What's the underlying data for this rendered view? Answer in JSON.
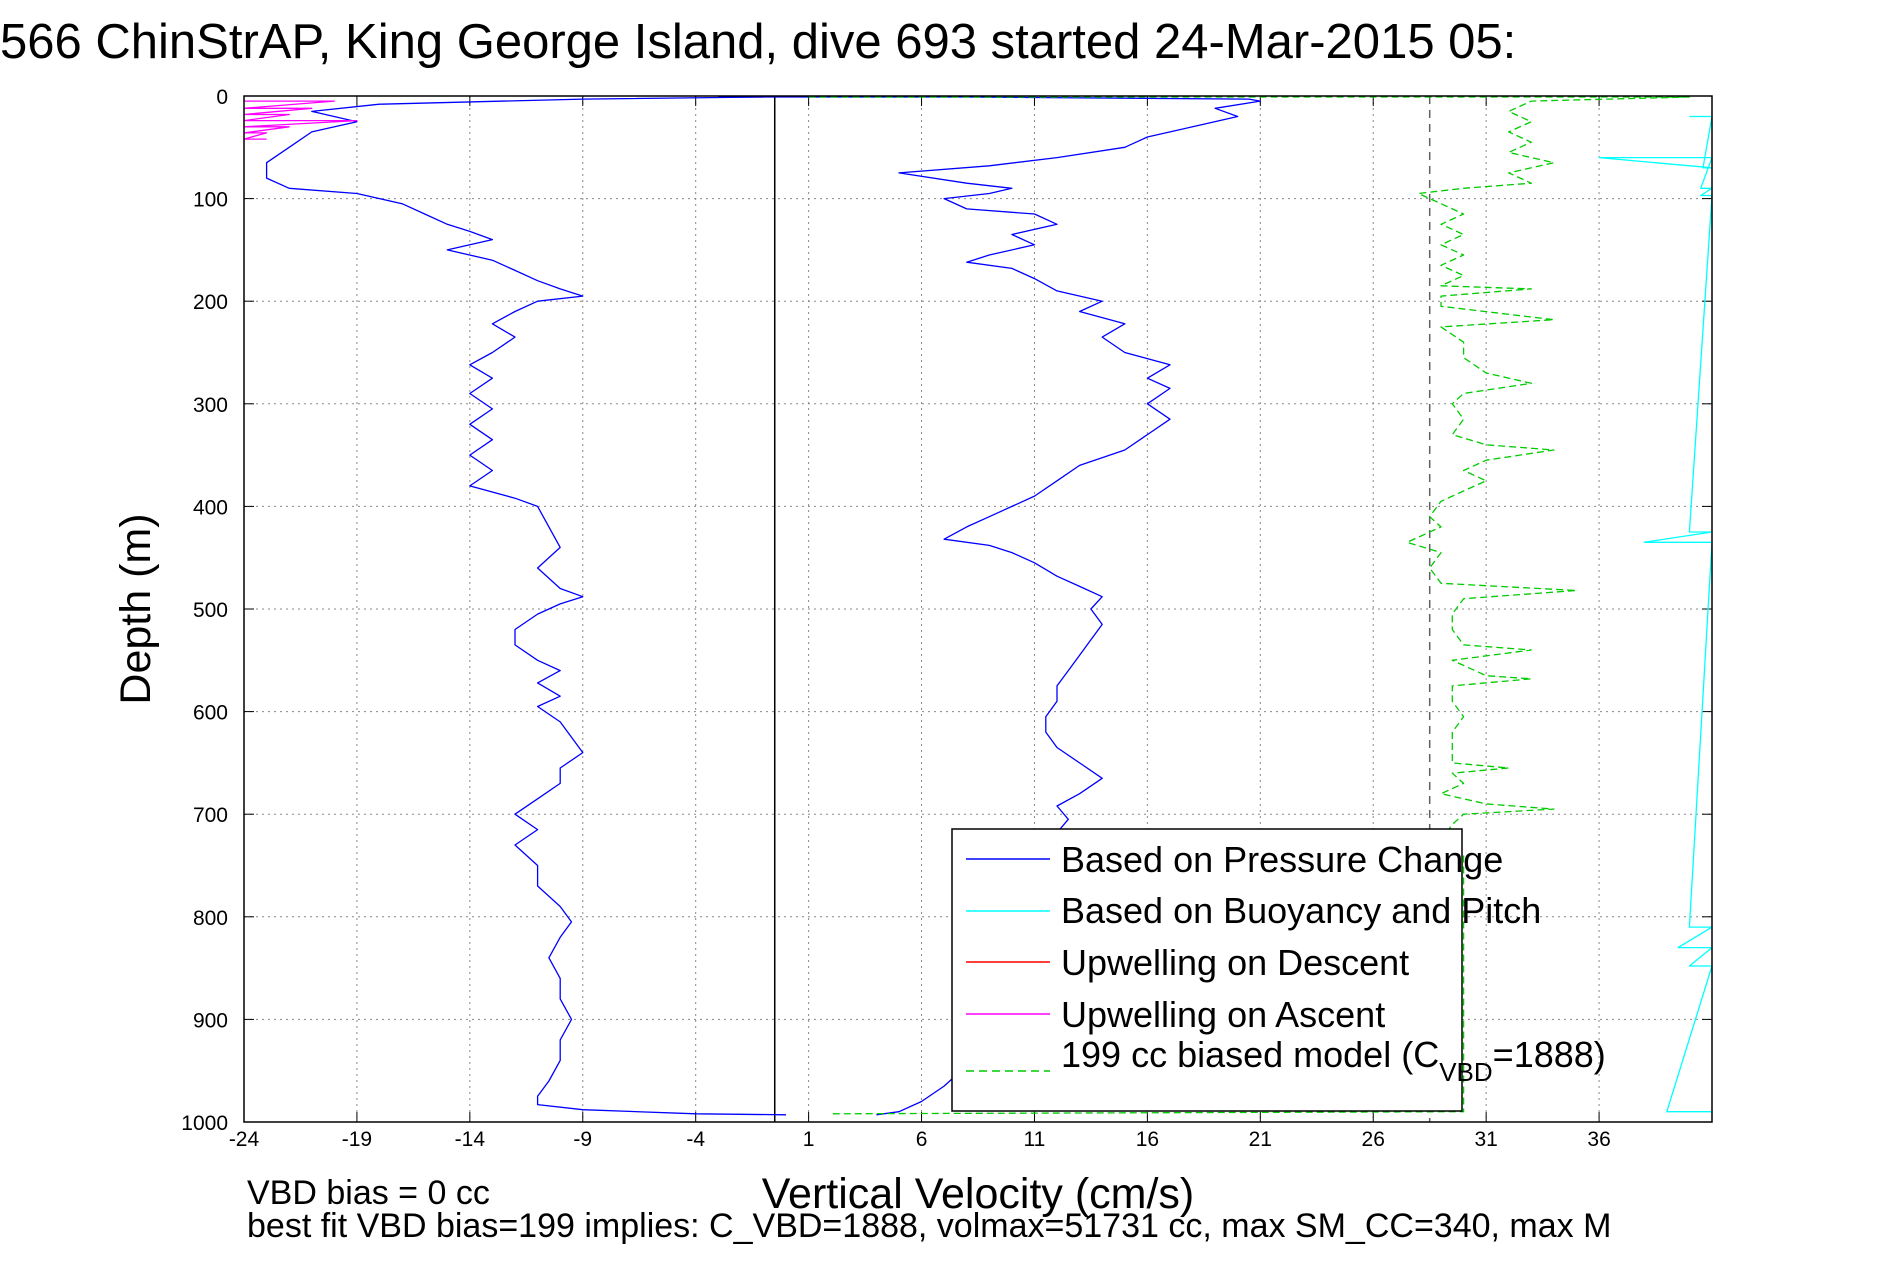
{
  "chart_data": {
    "type": "line",
    "title": "566 ChinStrAP, King George Island, dive 693 started 24-Mar-2015 05:",
    "xlabel": "Vertical Velocity (cm/s)",
    "ylabel": "Depth (m)",
    "xlim": [
      -24,
      41
    ],
    "ylim": [
      0,
      1000
    ],
    "y_reversed": true,
    "grid": true,
    "xticks": [
      "-24",
      "-19",
      "-14",
      "-9",
      "-4",
      "1",
      "6",
      "11",
      "16",
      "21",
      "26",
      "31",
      "36"
    ],
    "xtick_values": [
      -24,
      -19,
      -14,
      -9,
      -4,
      1,
      6,
      11,
      16,
      21,
      26,
      31,
      36
    ],
    "yticks": [
      "0",
      "100",
      "200",
      "300",
      "400",
      "500",
      "600",
      "700",
      "800",
      "900",
      "1000"
    ],
    "ytick_values": [
      0,
      100,
      200,
      300,
      400,
      500,
      600,
      700,
      800,
      900,
      1000
    ],
    "legend_position": "bottom-right",
    "legend": [
      {
        "label": "Based on Pressure Change",
        "color": "#0000ff",
        "style": "solid"
      },
      {
        "label": "Based on Buoyancy and Pitch",
        "color": "#00ffff",
        "style": "solid"
      },
      {
        "label": "Upwelling on Descent",
        "color": "#ff0000",
        "style": "solid"
      },
      {
        "label": "Upwelling on Ascent",
        "color": "#ff00ff",
        "style": "solid"
      },
      {
        "label_prefix": "199 cc biased model (C",
        "label_sub": "VBD",
        "label_suffix": "=1888)",
        "color": "#00cc00",
        "style": "dashed"
      }
    ],
    "reference_lines": [
      {
        "x": -0.5,
        "color": "#000000",
        "style": "solid"
      },
      {
        "x": 28.5,
        "color": "#606060",
        "style": "dashed"
      }
    ],
    "series": [
      {
        "name": "Based on Pressure Change",
        "color": "#0000ff",
        "segment": "descent",
        "points": [
          [
            -1,
            1
          ],
          [
            -9,
            3
          ],
          [
            -18,
            8
          ],
          [
            -21,
            15
          ],
          [
            -19,
            25
          ],
          [
            -21,
            35
          ],
          [
            -22,
            50
          ],
          [
            -23,
            65
          ],
          [
            -23,
            80
          ],
          [
            -22,
            90
          ],
          [
            -19,
            95
          ],
          [
            -17,
            105
          ],
          [
            -16,
            115
          ],
          [
            -15,
            125
          ],
          [
            -14,
            132
          ],
          [
            -13,
            140
          ],
          [
            -15,
            150
          ],
          [
            -13,
            160
          ],
          [
            -12,
            170
          ],
          [
            -11,
            180
          ],
          [
            -10,
            188
          ],
          [
            -9,
            195
          ],
          [
            -11,
            200
          ],
          [
            -12,
            210
          ],
          [
            -13,
            222
          ],
          [
            -12,
            235
          ],
          [
            -13,
            250
          ],
          [
            -14,
            262
          ],
          [
            -13,
            275
          ],
          [
            -14,
            290
          ],
          [
            -13,
            305
          ],
          [
            -14,
            320
          ],
          [
            -13,
            335
          ],
          [
            -14,
            350
          ],
          [
            -13,
            365
          ],
          [
            -14,
            380
          ],
          [
            -12,
            392
          ],
          [
            -11,
            400
          ],
          [
            -10.5,
            420
          ],
          [
            -10,
            440
          ],
          [
            -11,
            460
          ],
          [
            -10,
            480
          ],
          [
            -9,
            488
          ],
          [
            -10,
            495
          ],
          [
            -11,
            505
          ],
          [
            -12,
            520
          ],
          [
            -12,
            535
          ],
          [
            -11,
            550
          ],
          [
            -10,
            560
          ],
          [
            -11,
            572
          ],
          [
            -10,
            585
          ],
          [
            -11,
            595
          ],
          [
            -10,
            610
          ],
          [
            -9.5,
            625
          ],
          [
            -9,
            640
          ],
          [
            -10,
            655
          ],
          [
            -10,
            670
          ],
          [
            -11,
            685
          ],
          [
            -12,
            700
          ],
          [
            -11,
            715
          ],
          [
            -12,
            730
          ],
          [
            -11,
            750
          ],
          [
            -11,
            770
          ],
          [
            -10,
            790
          ],
          [
            -9.5,
            805
          ],
          [
            -10,
            820
          ],
          [
            -10.5,
            840
          ],
          [
            -10,
            860
          ],
          [
            -10,
            880
          ],
          [
            -9.5,
            900
          ],
          [
            -10,
            920
          ],
          [
            -10,
            940
          ],
          [
            -10.5,
            960
          ],
          [
            -11,
            975
          ],
          [
            -11,
            983
          ],
          [
            -9,
            988
          ],
          [
            -4,
            992
          ],
          [
            0,
            993
          ]
        ]
      },
      {
        "name": "Based on Pressure Change",
        "color": "#0000ff",
        "segment": "ascent",
        "points": [
          [
            -3,
            1
          ],
          [
            8,
            1
          ],
          [
            20.5,
            3
          ],
          [
            21,
            5
          ],
          [
            19,
            12
          ],
          [
            20,
            20
          ],
          [
            18,
            30
          ],
          [
            16,
            40
          ],
          [
            15,
            50
          ],
          [
            12,
            60
          ],
          [
            9,
            68
          ],
          [
            5,
            75
          ],
          [
            8,
            85
          ],
          [
            10,
            90
          ],
          [
            9,
            95
          ],
          [
            7,
            100
          ],
          [
            8,
            110
          ],
          [
            11,
            115
          ],
          [
            12,
            125
          ],
          [
            10,
            135
          ],
          [
            11,
            145
          ],
          [
            9,
            155
          ],
          [
            8,
            162
          ],
          [
            10,
            168
          ],
          [
            11,
            178
          ],
          [
            12,
            190
          ],
          [
            14,
            200
          ],
          [
            13,
            210
          ],
          [
            15,
            222
          ],
          [
            14,
            235
          ],
          [
            15,
            250
          ],
          [
            17,
            262
          ],
          [
            16,
            275
          ],
          [
            17,
            285
          ],
          [
            16,
            300
          ],
          [
            17,
            315
          ],
          [
            16,
            330
          ],
          [
            15,
            345
          ],
          [
            13,
            360
          ],
          [
            12,
            375
          ],
          [
            11,
            390
          ],
          [
            10,
            400
          ],
          [
            9,
            410
          ],
          [
            8,
            420
          ],
          [
            7,
            432
          ],
          [
            9,
            438
          ],
          [
            10,
            445
          ],
          [
            11,
            455
          ],
          [
            12,
            468
          ],
          [
            13,
            478
          ],
          [
            14,
            488
          ],
          [
            13.5,
            500
          ],
          [
            14,
            515
          ],
          [
            13.5,
            530
          ],
          [
            13,
            545
          ],
          [
            12.5,
            560
          ],
          [
            12,
            575
          ],
          [
            12,
            590
          ],
          [
            11.5,
            605
          ],
          [
            11.5,
            620
          ],
          [
            12,
            635
          ],
          [
            13,
            650
          ],
          [
            14,
            665
          ],
          [
            13,
            680
          ],
          [
            12,
            692
          ],
          [
            12.5,
            705
          ],
          [
            12,
            718
          ],
          [
            11,
            730
          ],
          [
            12,
            745
          ],
          [
            12,
            760
          ],
          [
            11.5,
            780
          ],
          [
            12,
            800
          ],
          [
            12,
            820
          ],
          [
            11,
            845
          ],
          [
            12,
            870
          ],
          [
            11,
            895
          ],
          [
            10,
            920
          ],
          [
            8,
            945
          ],
          [
            7,
            965
          ],
          [
            6,
            980
          ],
          [
            5,
            990
          ],
          [
            4,
            993
          ]
        ]
      },
      {
        "name": "Based on Buoyancy and Pitch",
        "color": "#00ffff",
        "segment": "right-edge",
        "points": [
          [
            40,
            20
          ],
          [
            41,
            20
          ],
          [
            40.6,
            70
          ],
          [
            41,
            70
          ],
          [
            36,
            60
          ],
          [
            41,
            60
          ],
          [
            40.5,
            90
          ],
          [
            41,
            90
          ],
          [
            40.5,
            97
          ],
          [
            41,
            97
          ],
          [
            40,
            425
          ],
          [
            41,
            425
          ],
          [
            38,
            435
          ],
          [
            41,
            435
          ],
          [
            40,
            810
          ],
          [
            41,
            810
          ],
          [
            39.5,
            830
          ],
          [
            41,
            830
          ],
          [
            40,
            848
          ],
          [
            41,
            848
          ],
          [
            39,
            990
          ],
          [
            41,
            990
          ]
        ]
      },
      {
        "name": "Upwelling on Ascent",
        "color": "#ff00ff",
        "segment": "top-left",
        "points": [
          [
            -24,
            5
          ],
          [
            -20,
            5
          ],
          [
            -24,
            12
          ],
          [
            -21,
            12
          ],
          [
            -24,
            18
          ],
          [
            -22,
            18
          ],
          [
            -24,
            24
          ],
          [
            -19,
            24
          ],
          [
            -24,
            30
          ],
          [
            -22,
            30
          ],
          [
            -24,
            36
          ],
          [
            -23,
            36
          ],
          [
            -24,
            42
          ],
          [
            -23,
            42
          ]
        ]
      },
      {
        "name": "199 cc biased model (C_VBD=1888)",
        "color": "#00cc00",
        "segment": "model",
        "points": [
          [
            1,
            1
          ],
          [
            40,
            1
          ],
          [
            33,
            5
          ],
          [
            32,
            15
          ],
          [
            33,
            25
          ],
          [
            32,
            35
          ],
          [
            33,
            45
          ],
          [
            32,
            55
          ],
          [
            33,
            60
          ],
          [
            34,
            65
          ],
          [
            32,
            75
          ],
          [
            33,
            85
          ],
          [
            30,
            90
          ],
          [
            28,
            95
          ],
          [
            29,
            105
          ],
          [
            30,
            115
          ],
          [
            29,
            125
          ],
          [
            30,
            135
          ],
          [
            29,
            145
          ],
          [
            30,
            155
          ],
          [
            29,
            165
          ],
          [
            30,
            175
          ],
          [
            29,
            185
          ],
          [
            33,
            188
          ],
          [
            29,
            195
          ],
          [
            29,
            205
          ],
          [
            34,
            218
          ],
          [
            29,
            225
          ],
          [
            30,
            240
          ],
          [
            30,
            255
          ],
          [
            31,
            270
          ],
          [
            33,
            280
          ],
          [
            30,
            290
          ],
          [
            29.5,
            300
          ],
          [
            30,
            315
          ],
          [
            29.5,
            330
          ],
          [
            31,
            340
          ],
          [
            34,
            345
          ],
          [
            31,
            355
          ],
          [
            30,
            365
          ],
          [
            31,
            375
          ],
          [
            30,
            385
          ],
          [
            29,
            395
          ],
          [
            28.5,
            410
          ],
          [
            29,
            420
          ],
          [
            27.5,
            435
          ],
          [
            29,
            445
          ],
          [
            28.5,
            460
          ],
          [
            29,
            475
          ],
          [
            35,
            482
          ],
          [
            30,
            490
          ],
          [
            29.5,
            505
          ],
          [
            29.5,
            520
          ],
          [
            30,
            535
          ],
          [
            33,
            540
          ],
          [
            29.5,
            550
          ],
          [
            31,
            565
          ],
          [
            33,
            568
          ],
          [
            29.5,
            575
          ],
          [
            29.5,
            590
          ],
          [
            30,
            605
          ],
          [
            29.5,
            620
          ],
          [
            29.5,
            635
          ],
          [
            29.5,
            650
          ],
          [
            32,
            655
          ],
          [
            29.5,
            660
          ],
          [
            30,
            670
          ],
          [
            29,
            680
          ],
          [
            31,
            690
          ],
          [
            34,
            695
          ],
          [
            30,
            700
          ],
          [
            29.5,
            710
          ],
          [
            29,
            725
          ],
          [
            30,
            740
          ],
          [
            30,
            990
          ],
          [
            2,
            992
          ]
        ]
      }
    ],
    "footer": {
      "line1": "VBD bias = 0 cc",
      "line2": "best fit VBD bias=199 implies: C_VBD=1888, volmax=51731 cc, max SM_CC=340, max M"
    }
  }
}
